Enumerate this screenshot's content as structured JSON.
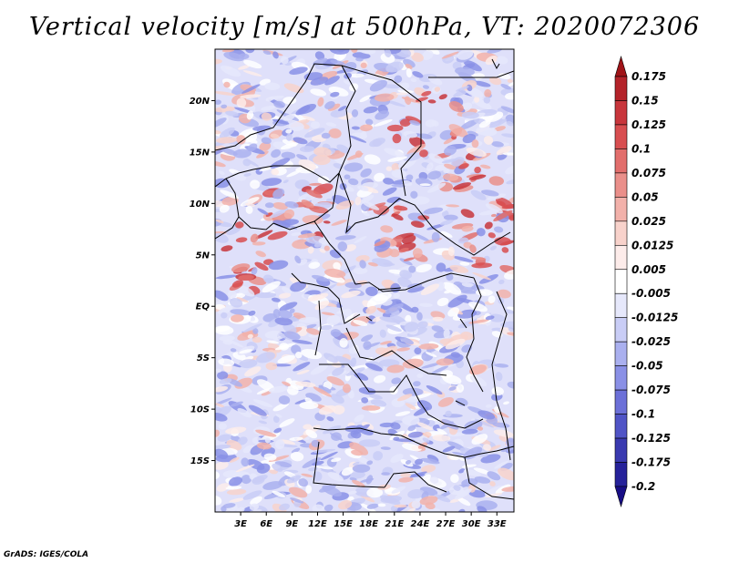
{
  "title": "Vertical velocity [m/s] at 500hPa, VT: 2020072306",
  "footer": "GrADS: IGES/COLA",
  "map": {
    "lat_range": [
      -20,
      25
    ],
    "lon_range": [
      0,
      35
    ],
    "lat_ticks": [
      {
        "value": 20,
        "label": "20N"
      },
      {
        "value": 15,
        "label": "15N"
      },
      {
        "value": 10,
        "label": "10N"
      },
      {
        "value": 5,
        "label": "5N"
      },
      {
        "value": 0,
        "label": "EQ"
      },
      {
        "value": -5,
        "label": "5S"
      },
      {
        "value": -10,
        "label": "10S"
      },
      {
        "value": -15,
        "label": "15S"
      }
    ],
    "lon_ticks": [
      {
        "value": 3,
        "label": "3E"
      },
      {
        "value": 6,
        "label": "6E"
      },
      {
        "value": 9,
        "label": "9E"
      },
      {
        "value": 12,
        "label": "12E"
      },
      {
        "value": 15,
        "label": "15E"
      },
      {
        "value": 18,
        "label": "18E"
      },
      {
        "value": 21,
        "label": "21E"
      },
      {
        "value": 24,
        "label": "24E"
      },
      {
        "value": 27,
        "label": "27E"
      },
      {
        "value": 30,
        "label": "30E"
      },
      {
        "value": 33,
        "label": "33E"
      }
    ]
  },
  "colorbar": {
    "levels": [
      "0.175",
      "0.15",
      "0.125",
      "0.1",
      "0.075",
      "0.05",
      "0.025",
      "0.0125",
      "0.005",
      "-0.005",
      "-0.0125",
      "-0.025",
      "-0.05",
      "-0.075",
      "-0.1",
      "-0.125",
      "-0.175",
      "-0.2"
    ],
    "colors": [
      "#a01418",
      "#b4232a",
      "#c8363c",
      "#d84e50",
      "#e26e6c",
      "#ea8f8a",
      "#f2b1aa",
      "#f8d2cb",
      "#fdecea",
      "#ffffff",
      "#e6e8fb",
      "#c9cdf6",
      "#aab0ef",
      "#8a90e6",
      "#6c70d8",
      "#5054c6",
      "#3a3ab0",
      "#26229a",
      "#180e86"
    ]
  }
}
